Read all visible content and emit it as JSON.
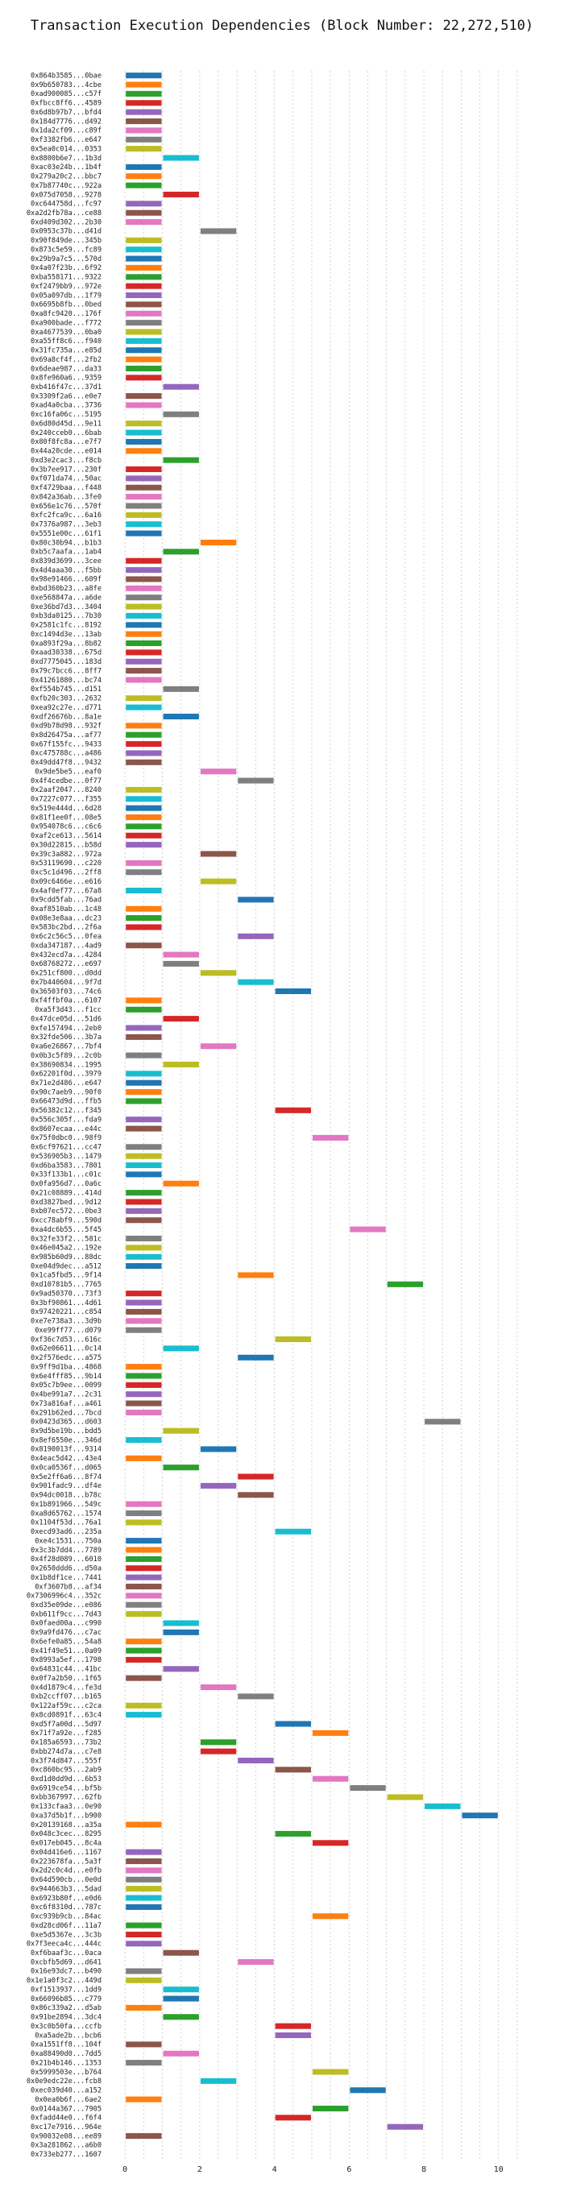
{
  "chart_data": {
    "type": "gantt",
    "title": "Transaction Execution Dependencies (Block Number: 22,272,510)",
    "xlabel": "",
    "ylabel": "",
    "xlim": [
      -0.5,
      10.5
    ],
    "x_ticks": [
      0,
      2,
      4,
      6,
      8,
      10
    ],
    "grid": "vertical dotted",
    "colors": [
      "#1f77b4",
      "#ff7f0e",
      "#2ca02c",
      "#d62728",
      "#9467bd",
      "#8c564b",
      "#e377c2",
      "#7f7f7f",
      "#bcbd22",
      "#17becf"
    ],
    "transactions": [
      "0x864b3585...0bae",
      "0x9b650783...4cbe",
      "0xad900085...c57f",
      "0xfbcc8ff6...4589",
      "0x6d8b97b7...bfd4",
      "0x184d7776...d492",
      "0x1da2cf09...c89f",
      "0xf3382fb6...e647",
      "0x5ea0c014...0353",
      "0x8800b6e7...1b3d",
      "0xac03e24b...1b4f",
      "0x279a20c2...bbc7",
      "0x7b87740c...922a",
      "0x075d7058...9278",
      "0xc644758d...fc97",
      "0xa2d2fb78a...ce88",
      "0xd409d302...2b30",
      "0x0953c37b...d41d",
      "0x90f849de...345b",
      "0x873c5e59...fc89",
      "0x29b9a7c5...570d",
      "0x4a07f23b...6f92",
      "0xba558171...9322",
      "0xf2479bb9...972e",
      "0x05a097db...1f79",
      "0x6695b8fb...0bed",
      "0xa8fc9420...176f",
      "0xa900bade...f772",
      "0xa4677539...0ba0",
      "0xa55ff8c6...f940",
      "0x31fc735a...e85d",
      "0x69a8cf4f...2fb2",
      "0x6deae987...da33",
      "0x8fe960a6...9359",
      "0xb416f47c...37d1",
      "0x3309f2a6...e0e7",
      "0xad4a0cba...3736",
      "0xc16fa06c...5195",
      "0x6d80d45d...9e11",
      "0x240cceb0...6bab",
      "0x80f8fc8a...e7f7",
      "0x44a20cde...e014",
      "0xd3e2cac3...f8cb",
      "0x3b7ee917...230f",
      "0xf071da74...50ac",
      "0xf4729baa...f448",
      "0x842a36ab...3fe0",
      "0x656e1c76...570f",
      "0xfc2fca9c...6a16",
      "0x7376a987...3eb3",
      "0x5551e00c...61f1",
      "0x80c30b94...b1b3",
      "0xb5c7aafa...1ab4",
      "0x839d3699...3cee",
      "0x4d4aaa30...f5bb",
      "0x98e91466...609f",
      "0xbd360b23...a8fe",
      "0xe568847a...a6de",
      "0xe36bd7d3...3404",
      "0xb3da0125...7b30",
      "0x2581c1fc...8192",
      "0xc1494d3e...13ab",
      "0xa893f29a...8b82",
      "0xaad30338...675d",
      "0xd7775045...183d",
      "0x79c7bcc6...8ff7",
      "0x41261880...bc74",
      "0xf554b745...d151",
      "0xfb20c303...2632",
      "0xea92c27e...d771",
      "0xdf26676b...8a1e",
      "0xd9b78d98...932f",
      "0x8d26475a...af77",
      "0x67f155fc...9433",
      "0xc475788c...a486",
      "0x49dd47f8...9432",
      "0x9de5be5...eaf0",
      "0x4f4cedbe...0f77",
      "0x2aaf2047...8240",
      "0x7227c077...f355",
      "0x519e444d...6d28",
      "0x81f1ee0f...08e5",
      "0x954078c6...c6c6",
      "0xaf2ce613...5614",
      "0x30d22815...b58d",
      "0x39c3a882...972a",
      "0x53119690...c220",
      "0xc5c1d496...2ff8",
      "0x09c6466e...e616",
      "0x4af0ef77...67a8",
      "0x9cdd5fab...76ad",
      "0xaf8510ab...1c48",
      "0x08e3e8aa...dc23",
      "0x583bc2bd...2f6a",
      "0x6c2c56c5...0fea",
      "0xda347187...4ad9",
      "0x432ecd7a...4284",
      "0x68768272...e697",
      "0x251cf800...d0dd",
      "0x7b440604...9f7d",
      "0x36503f03...74c6",
      "0xf4ffbf0a...6107",
      "0xa5f3d43...f1cc",
      "0x47dce05d...51d6",
      "0xfe157494...2eb0",
      "0x32fde506...3b7a",
      "0xa6e26867...7bf4",
      "0x0b3c5f89...2c0b",
      "0x38690834...1995",
      "0x62201f0d...3979",
      "0x71e2d486...e647",
      "0x90c7aeb9...90f0",
      "0x66473d9d...ffb5",
      "0x56382c12...f345",
      "0x556c305f...fda9",
      "0x8607ecaa...e44c",
      "0x75f0dbc0...98f9",
      "0x6cf97621...cc47",
      "0x536905b3...1479",
      "0xd6ba3583...7801",
      "0x33f133b1...c01c",
      "0x0fa956d7...0a6c",
      "0x21c08889...414d",
      "0xd3827bed...9d12",
      "0xb07ec572...0be3",
      "0xcc78abf9...590d",
      "0xa4dc6b55...5f45",
      "0x32fe33f2...581c",
      "0x46e045a2...192e",
      "0x985b60d9...88dc",
      "0xe04d9dec...a512",
      "0x1ca5fbd5...9f14",
      "0xd10781b5...7765",
      "0x9ad50370...73f3",
      "0x3bf90861...4d61",
      "0x97420221...c854",
      "0xe7e738a3...3d9b",
      "0xe99ff77...d079",
      "0xf36c7d53...616c",
      "0x62e06611...0c14",
      "0x2f576edc...a575",
      "0x9ff9d1ba...4868",
      "0x6e4fff85...9b14",
      "0x05c7b9ee...0099",
      "0x4be991a7...2c31",
      "0x73a816af...a461",
      "0x291b62ed...7bcd",
      "0x0423d365...d603",
      "0x9d5be19b...bdd5",
      "0x8ef6550e...346d",
      "0x8190013f...9314",
      "0x4eac5d42...43e4",
      "0x0ca0536f...d065",
      "0x5e2ff6a6...8f74",
      "0x901fadc9...df4e",
      "0x94dc0018...b78c",
      "0x1b891966...549c",
      "0xa8d65762...1574",
      "0x1104f53d...76a1",
      "0xecd93ad6...235a",
      "0xe4c1531...750a",
      "0x3c3b7dd4...7789",
      "0x4f28d089...6010",
      "0x2650ddd6...d50a",
      "0x1b8df1ce...7441",
      "0xf3607b8...af34",
      "0x7306996c4...352c",
      "0xd35e09de...e086",
      "0xb611f9cc...7d43",
      "0x0faed00a...c990",
      "0x9a9fd476...c7ac",
      "0x6efe0a85...54a8",
      "0x41f49e51...0a09",
      "0x8993a5ef...1798",
      "0x64831c44...41bc",
      "0x0f7a2b50...1f65",
      "0x4d1879c4...fe3d",
      "0xb2ccff07...b165",
      "0x122af59c...c2ca",
      "0x8cd0891f...63c4",
      "0xd5f7a00d...5d97",
      "0x71f7a92e...f285",
      "0x185a6593...73b2",
      "0xbb274d7a...c7e8",
      "0x3f74d847...555f",
      "0xc860bc95...2ab9",
      "0xd1d0dd9d...6b53",
      "0x6919ce54...bf5b",
      "0xbb367997...62fb",
      "0x133cfaa3...0e90",
      "0xa37d5b1f...b900",
      "0x20139168...a35a",
      "0x048c3cec...8295",
      "0x017eb045...8c4a",
      "0x04d416e6...1167",
      "0x223678fa...5a3f",
      "0x2d2c0c4d...e0fb",
      "0x64d590cb...0e0d",
      "0x944663b3...5dad",
      "0x6923b80f...e0d6",
      "0xc6f8310d...787c",
      "0xc939b9cb...84ac",
      "0xd28cd06f...11a7",
      "0xe5d5367e...3c3b",
      "0x7f3eeca4c...444c",
      "0xf6baaf3c...0aca",
      "0xcbfb5d69...d641",
      "0x16e93dc7...b490",
      "0x1e1a0f3c2...449d",
      "0xf1513937...1dd9",
      "0x66096b85...c779",
      "0x86c339a2...d5ab",
      "0x91be2894...3dc4",
      "0x3c0b50fa...ccfb",
      "0xa5ade2b...bcb6",
      "0xa1551ff8...104f",
      "0xa88490d0...7dd5",
      "0x21b4b146...1353",
      "0x5999503e...b764",
      "0x0e9edc22e...fcb8",
      "0xec039d40...a152",
      "0x0ea0b6f...6ae2",
      "0x0144a367...7905",
      "0xfadd44e0...f6f4",
      "0xc17e7916...964e",
      "0x90032e08...ee89",
      "0x3a281862...a6b0",
      "0x733eb277...1607"
    ],
    "start": [
      0,
      0,
      0,
      0,
      0,
      0,
      0,
      0,
      0,
      1,
      0,
      0,
      0,
      1,
      0,
      0,
      0,
      2,
      0,
      0,
      0,
      0,
      0,
      0,
      0,
      0,
      0,
      0,
      0,
      0,
      0,
      0,
      0,
      0,
      1,
      0,
      0,
      1,
      0,
      0,
      0,
      0,
      1,
      0,
      0,
      0,
      0,
      0,
      0,
      0,
      0,
      2,
      1,
      0,
      0,
      0,
      0,
      0,
      0,
      0,
      0,
      0,
      0,
      0,
      0,
      0,
      0,
      1,
      0,
      0,
      1,
      0,
      0,
      0,
      0,
      0,
      2,
      3,
      0,
      0,
      0,
      0,
      0,
      0,
      0,
      2,
      0,
      0,
      2,
      0,
      3,
      0,
      0,
      0,
      3,
      0,
      1,
      1,
      2,
      3,
      4,
      0,
      0,
      1,
      0,
      0,
      2,
      0,
      1,
      0,
      0,
      0,
      0,
      4,
      0,
      0,
      5,
      0,
      0,
      0,
      0,
      1,
      0,
      0,
      0,
      0,
      6,
      0,
      0,
      0,
      0,
      3,
      7,
      0,
      0,
      0,
      0,
      0,
      4,
      1,
      3,
      0,
      0,
      0,
      0,
      0,
      0,
      8,
      1,
      0,
      2,
      0,
      1,
      3,
      2,
      3,
      0,
      0,
      0,
      4,
      0,
      0,
      0,
      0,
      0,
      0,
      0,
      0,
      0,
      1,
      1,
      0,
      0,
      0,
      1,
      0,
      2,
      3,
      0,
      0,
      4,
      5,
      2,
      2,
      3,
      4,
      5,
      6,
      7,
      8,
      9,
      0,
      4,
      5,
      0,
      0,
      0,
      0,
      0,
      0,
      0,
      5,
      0,
      0,
      0,
      1,
      3,
      0,
      0,
      1,
      1,
      0,
      1,
      4,
      4,
      0,
      1,
      0,
      5,
      2,
      6,
      0,
      5,
      4,
      7,
      0
    ],
    "duration": 1,
    "bar_colors": [
      0,
      1,
      2,
      3,
      4,
      5,
      6,
      7,
      8,
      9,
      0,
      1,
      2,
      3,
      4,
      5,
      6,
      7,
      8,
      9,
      0,
      1,
      2,
      3,
      4,
      5,
      6,
      7,
      8,
      9,
      0,
      1,
      2,
      3,
      4,
      5,
      6,
      7,
      8,
      9,
      0,
      1,
      2,
      3,
      4,
      5,
      6,
      7,
      8,
      9,
      0,
      1,
      2,
      3,
      4,
      5,
      6,
      7,
      8,
      9,
      0,
      1,
      2,
      3,
      4,
      5,
      6,
      7,
      8,
      9,
      0,
      1,
      2,
      3,
      4,
      5,
      6,
      7,
      8,
      9,
      0,
      1,
      2,
      3,
      4,
      5,
      6,
      7,
      8,
      9,
      0,
      1,
      2,
      3,
      4,
      5,
      6,
      7,
      8,
      9,
      0,
      1,
      2,
      3,
      4,
      5,
      6,
      7,
      8,
      9,
      0,
      1,
      2,
      3,
      4,
      5,
      6,
      7,
      8,
      9,
      0,
      1,
      2,
      3,
      4,
      5,
      6,
      7,
      8,
      9,
      0,
      1,
      2,
      3,
      4,
      5,
      6,
      7,
      8,
      9,
      0,
      1,
      2,
      3,
      4,
      5,
      6,
      7,
      8,
      9,
      0,
      1,
      2,
      3,
      4,
      5,
      6,
      7,
      8,
      9,
      0,
      1,
      2,
      3,
      4,
      5,
      6,
      7,
      8,
      9,
      0,
      1,
      2,
      3,
      4,
      5,
      6,
      7,
      8,
      9,
      0,
      1,
      2,
      3,
      4,
      5,
      6,
      7,
      8,
      9,
      0,
      1,
      2,
      3,
      4,
      5,
      6,
      7,
      8,
      9,
      0,
      1,
      2,
      3,
      4,
      5,
      6,
      7,
      8,
      9,
      0,
      1,
      2,
      3,
      4,
      5,
      6,
      7,
      8,
      9,
      0,
      1,
      2,
      3,
      4,
      5,
      6,
      7,
      8,
      9,
      0,
      1,
      2,
      3,
      4,
      5,
      6,
      7
    ]
  }
}
